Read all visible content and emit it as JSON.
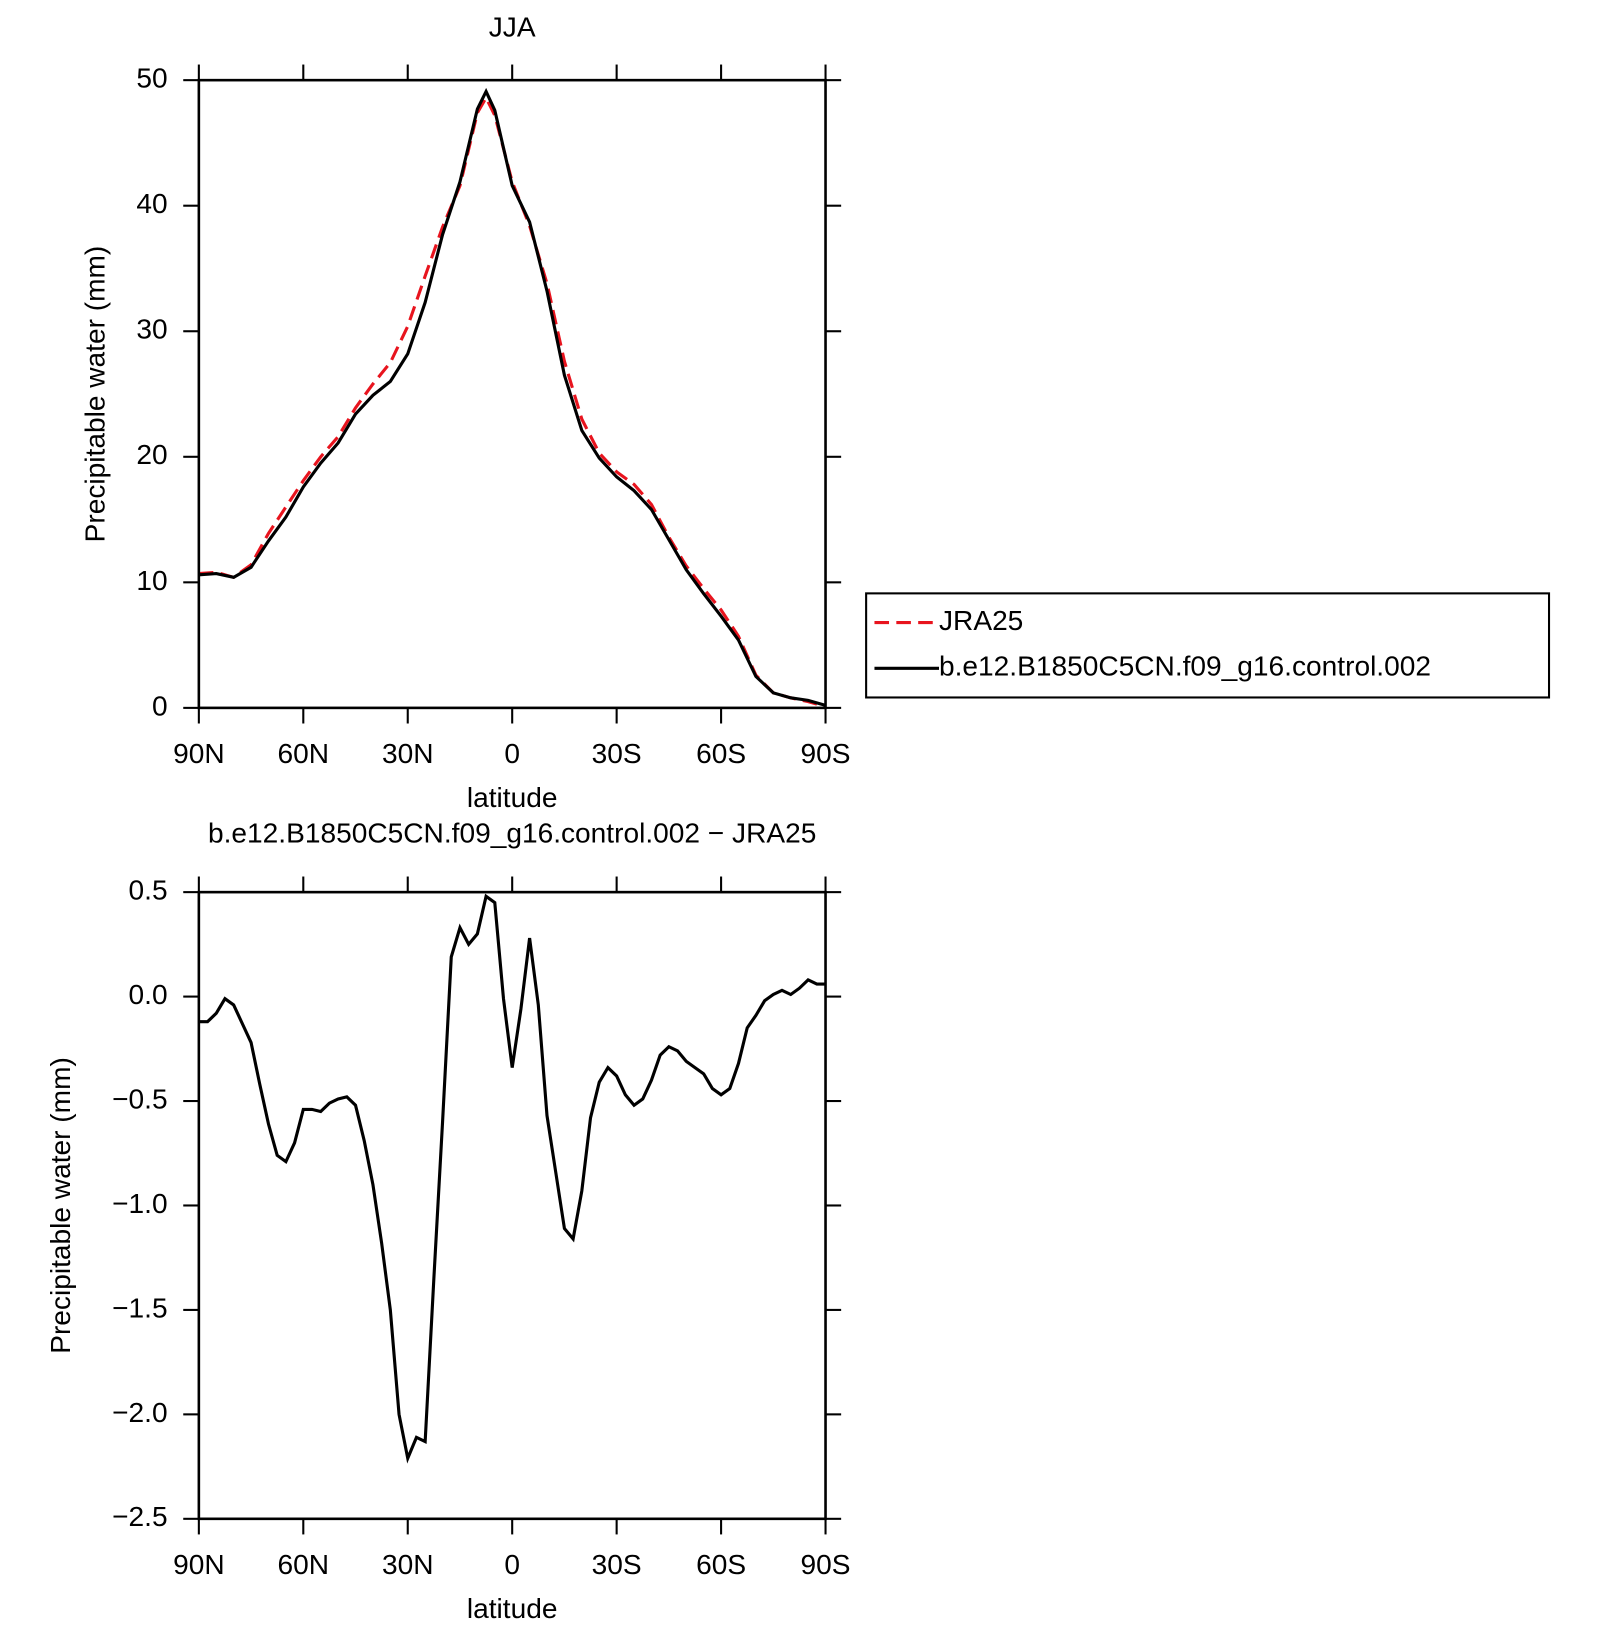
{
  "chart_data": [
    {
      "type": "line",
      "title": "JJA",
      "xlabel": "latitude",
      "ylabel": "Precipitable water (mm)",
      "x": [
        90,
        85,
        80,
        75,
        70,
        65,
        60,
        55,
        50,
        45,
        40,
        35,
        30,
        25,
        20,
        15,
        10,
        7.5,
        5,
        0,
        -5,
        -10,
        -15,
        -20,
        -25,
        -30,
        -35,
        -40,
        -45,
        -50,
        -55,
        -60,
        -65,
        -70,
        -75,
        -80,
        -85,
        -90
      ],
      "series": [
        {
          "name": "JRA25",
          "color": "#e8141e",
          "line_style": "dashed",
          "values": [
            10.7,
            10.8,
            10.4,
            11.4,
            13.9,
            16.0,
            18.1,
            20.0,
            21.6,
            23.9,
            25.8,
            27.5,
            30.4,
            34.4,
            38.3,
            41.6,
            47.4,
            48.6,
            47.2,
            41.9,
            38.4,
            33.8,
            27.6,
            23.0,
            20.3,
            18.8,
            17.8,
            16.2,
            13.6,
            11.3,
            9.5,
            7.8,
            5.7,
            2.6,
            1.2,
            0.8,
            0.5,
            0.1
          ]
        },
        {
          "name": "b.e12.B1850C5CN.f09_g16.control.002",
          "color": "#000000",
          "line_style": "solid",
          "values": [
            10.6,
            10.7,
            10.4,
            11.2,
            13.3,
            15.2,
            17.6,
            19.5,
            21.1,
            23.4,
            24.9,
            26.0,
            28.2,
            32.3,
            37.7,
            41.9,
            47.7,
            49.1,
            47.6,
            41.6,
            38.7,
            33.2,
            26.5,
            22.1,
            19.9,
            18.4,
            17.3,
            15.8,
            13.4,
            11.0,
            9.1,
            7.3,
            5.4,
            2.5,
            1.2,
            0.8,
            0.6,
            0.2
          ]
        }
      ],
      "xlim": [
        90,
        -90
      ],
      "xticks": [
        {
          "value": 90,
          "label": "90N"
        },
        {
          "value": 60,
          "label": "60N"
        },
        {
          "value": 30,
          "label": "30N"
        },
        0,
        {
          "value": -30,
          "label": "30S"
        },
        {
          "value": -60,
          "label": "60S"
        },
        {
          "value": -90,
          "label": "90S"
        }
      ],
      "ylim": [
        0,
        50
      ],
      "yticks": [
        0,
        10,
        20,
        30,
        40,
        50
      ],
      "legend": "right"
    },
    {
      "type": "line",
      "title": "b.e12.B1850C5CN.f09_g16.control.002 − JRA25",
      "xlabel": "latitude",
      "ylabel": "Precipitable water (mm)",
      "x": [
        90,
        87.5,
        85,
        82.5,
        80,
        77.5,
        75,
        72.5,
        70,
        67.5,
        65,
        62.5,
        60,
        57.5,
        55,
        52.5,
        50,
        47.5,
        45,
        42.5,
        40,
        37.5,
        35,
        32.5,
        30,
        27.5,
        25,
        22.5,
        20,
        17.5,
        15,
        12.5,
        10,
        7.5,
        5,
        2.5,
        0,
        -2.5,
        -5,
        -7.5,
        -10,
        -12.5,
        -15,
        -17.5,
        -20,
        -22.5,
        -25,
        -27.5,
        -30,
        -32.5,
        -35,
        -37.5,
        -40,
        -42.5,
        -45,
        -47.5,
        -50,
        -52.5,
        -55,
        -57.5,
        -60,
        -62.5,
        -65,
        -67.5,
        -70,
        -72.5,
        -75,
        -77.5,
        -80,
        -82.5,
        -85,
        -87.5,
        -90
      ],
      "series": [
        {
          "color": "#000000",
          "line_style": "solid",
          "values": [
            -0.12,
            -0.12,
            -0.08,
            -0.01,
            -0.04,
            -0.13,
            -0.22,
            -0.42,
            -0.61,
            -0.76,
            -0.79,
            -0.7,
            -0.54,
            -0.54,
            -0.55,
            -0.51,
            -0.49,
            -0.48,
            -0.52,
            -0.69,
            -0.9,
            -1.18,
            -1.5,
            -2.0,
            -2.21,
            -2.11,
            -2.13,
            -1.35,
            -0.6,
            0.19,
            0.33,
            0.25,
            0.3,
            0.48,
            0.45,
            -0.01,
            -0.34,
            -0.06,
            0.28,
            -0.04,
            -0.57,
            -0.84,
            -1.11,
            -1.16,
            -0.93,
            -0.58,
            -0.41,
            -0.34,
            -0.38,
            -0.47,
            -0.52,
            -0.49,
            -0.4,
            -0.28,
            -0.24,
            -0.26,
            -0.31,
            -0.34,
            -0.37,
            -0.44,
            -0.47,
            -0.44,
            -0.32,
            -0.15,
            -0.09,
            -0.02,
            0.01,
            0.03,
            0.01,
            0.04,
            0.08,
            0.06,
            0.06
          ]
        }
      ],
      "xlim": [
        90,
        -90
      ],
      "xticks": [
        {
          "value": 90,
          "label": "90N"
        },
        {
          "value": 60,
          "label": "60N"
        },
        {
          "value": 30,
          "label": "30N"
        },
        0,
        {
          "value": -30,
          "label": "30S"
        },
        {
          "value": -60,
          "label": "60S"
        },
        {
          "value": -90,
          "label": "90S"
        }
      ],
      "ylim": [
        -2.5,
        0.5
      ],
      "yticks": [
        {
          "value": -2.5,
          "label": "−2.5"
        },
        {
          "value": -2,
          "label": "−2.0"
        },
        {
          "value": -1.5,
          "label": "−1.5"
        },
        {
          "value": -1,
          "label": "−1.0"
        },
        {
          "value": -0.5,
          "label": "−0.5"
        },
        {
          "value": 0,
          "label": "0.0"
        },
        0.5
      ]
    }
  ]
}
